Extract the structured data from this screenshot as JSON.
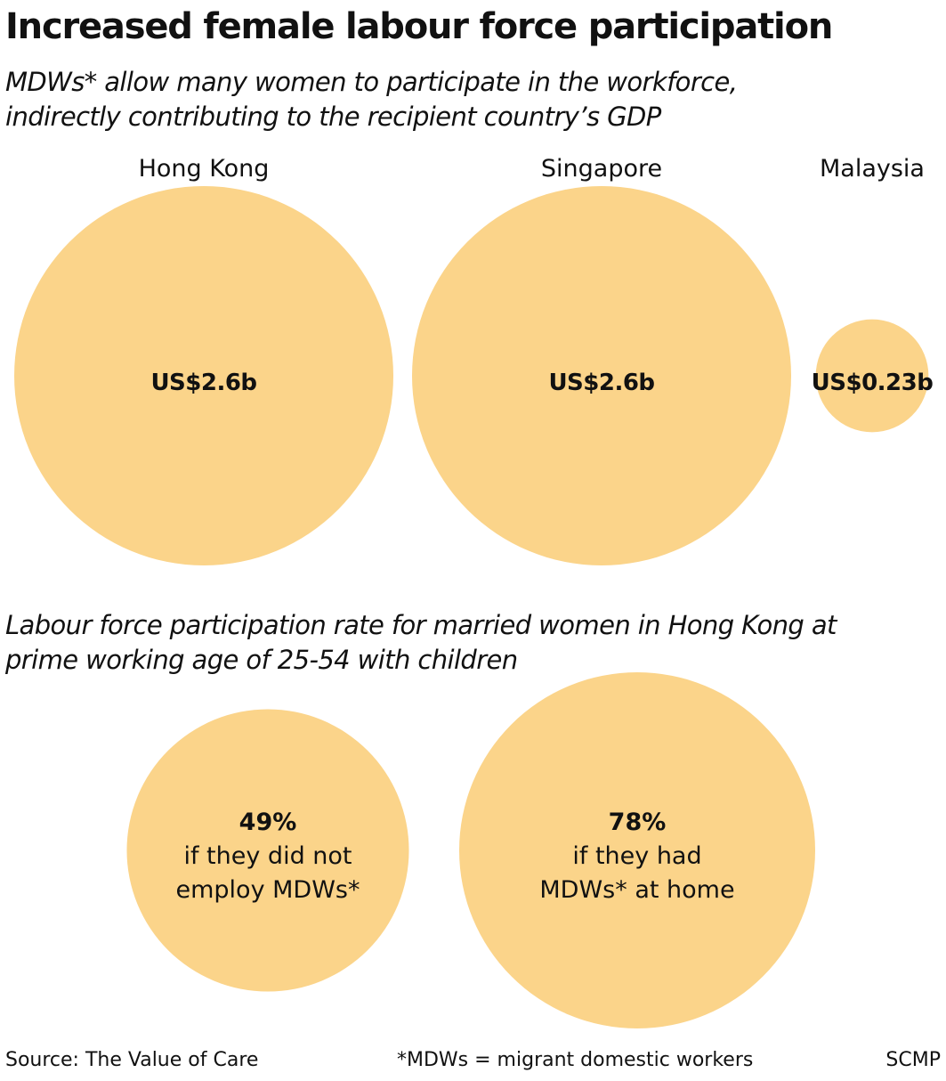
{
  "title": "Increased female labour force participation",
  "subtitle_1": {
    "line1": "MDWs* allow many women to participate in the workforce,",
    "line2": "indirectly contributing to the recipient country’s GDP"
  },
  "subtitle_2": {
    "line1": "Labour force participation rate for married women in Hong Kong at",
    "line2": "prime working age of 25-54 with children"
  },
  "colors": {
    "bubble": "#fbd48a",
    "text": "#111111"
  },
  "chart_data": [
    {
      "type": "bubble",
      "title": "MDWs* allow many women to participate in the workforce, indirectly contributing to the recipient country’s GDP",
      "categories": [
        "Hong Kong",
        "Singapore",
        "Malaysia"
      ],
      "values": [
        2.6,
        2.6,
        0.23
      ],
      "unit": "US$ billion",
      "data_labels": [
        "US$2.6b",
        "US$2.6b",
        "US$0.23b"
      ]
    },
    {
      "type": "bubble",
      "title": "Labour force participation rate for married women in Hong Kong at prime working age of 25-54 with children",
      "categories": [
        "if they did not employ MDWs*",
        "if they had MDWs* at home"
      ],
      "values": [
        49,
        78
      ],
      "unit": "%",
      "data_labels": [
        "49%",
        "78%"
      ],
      "label_lines": [
        [
          "if they did not",
          "employ MDWs*"
        ],
        [
          "if they had",
          "MDWs* at home"
        ]
      ]
    }
  ],
  "footer": {
    "source": "Source: The Value of Care",
    "note": "*MDWs = migrant domestic workers",
    "credit": "SCMP"
  }
}
